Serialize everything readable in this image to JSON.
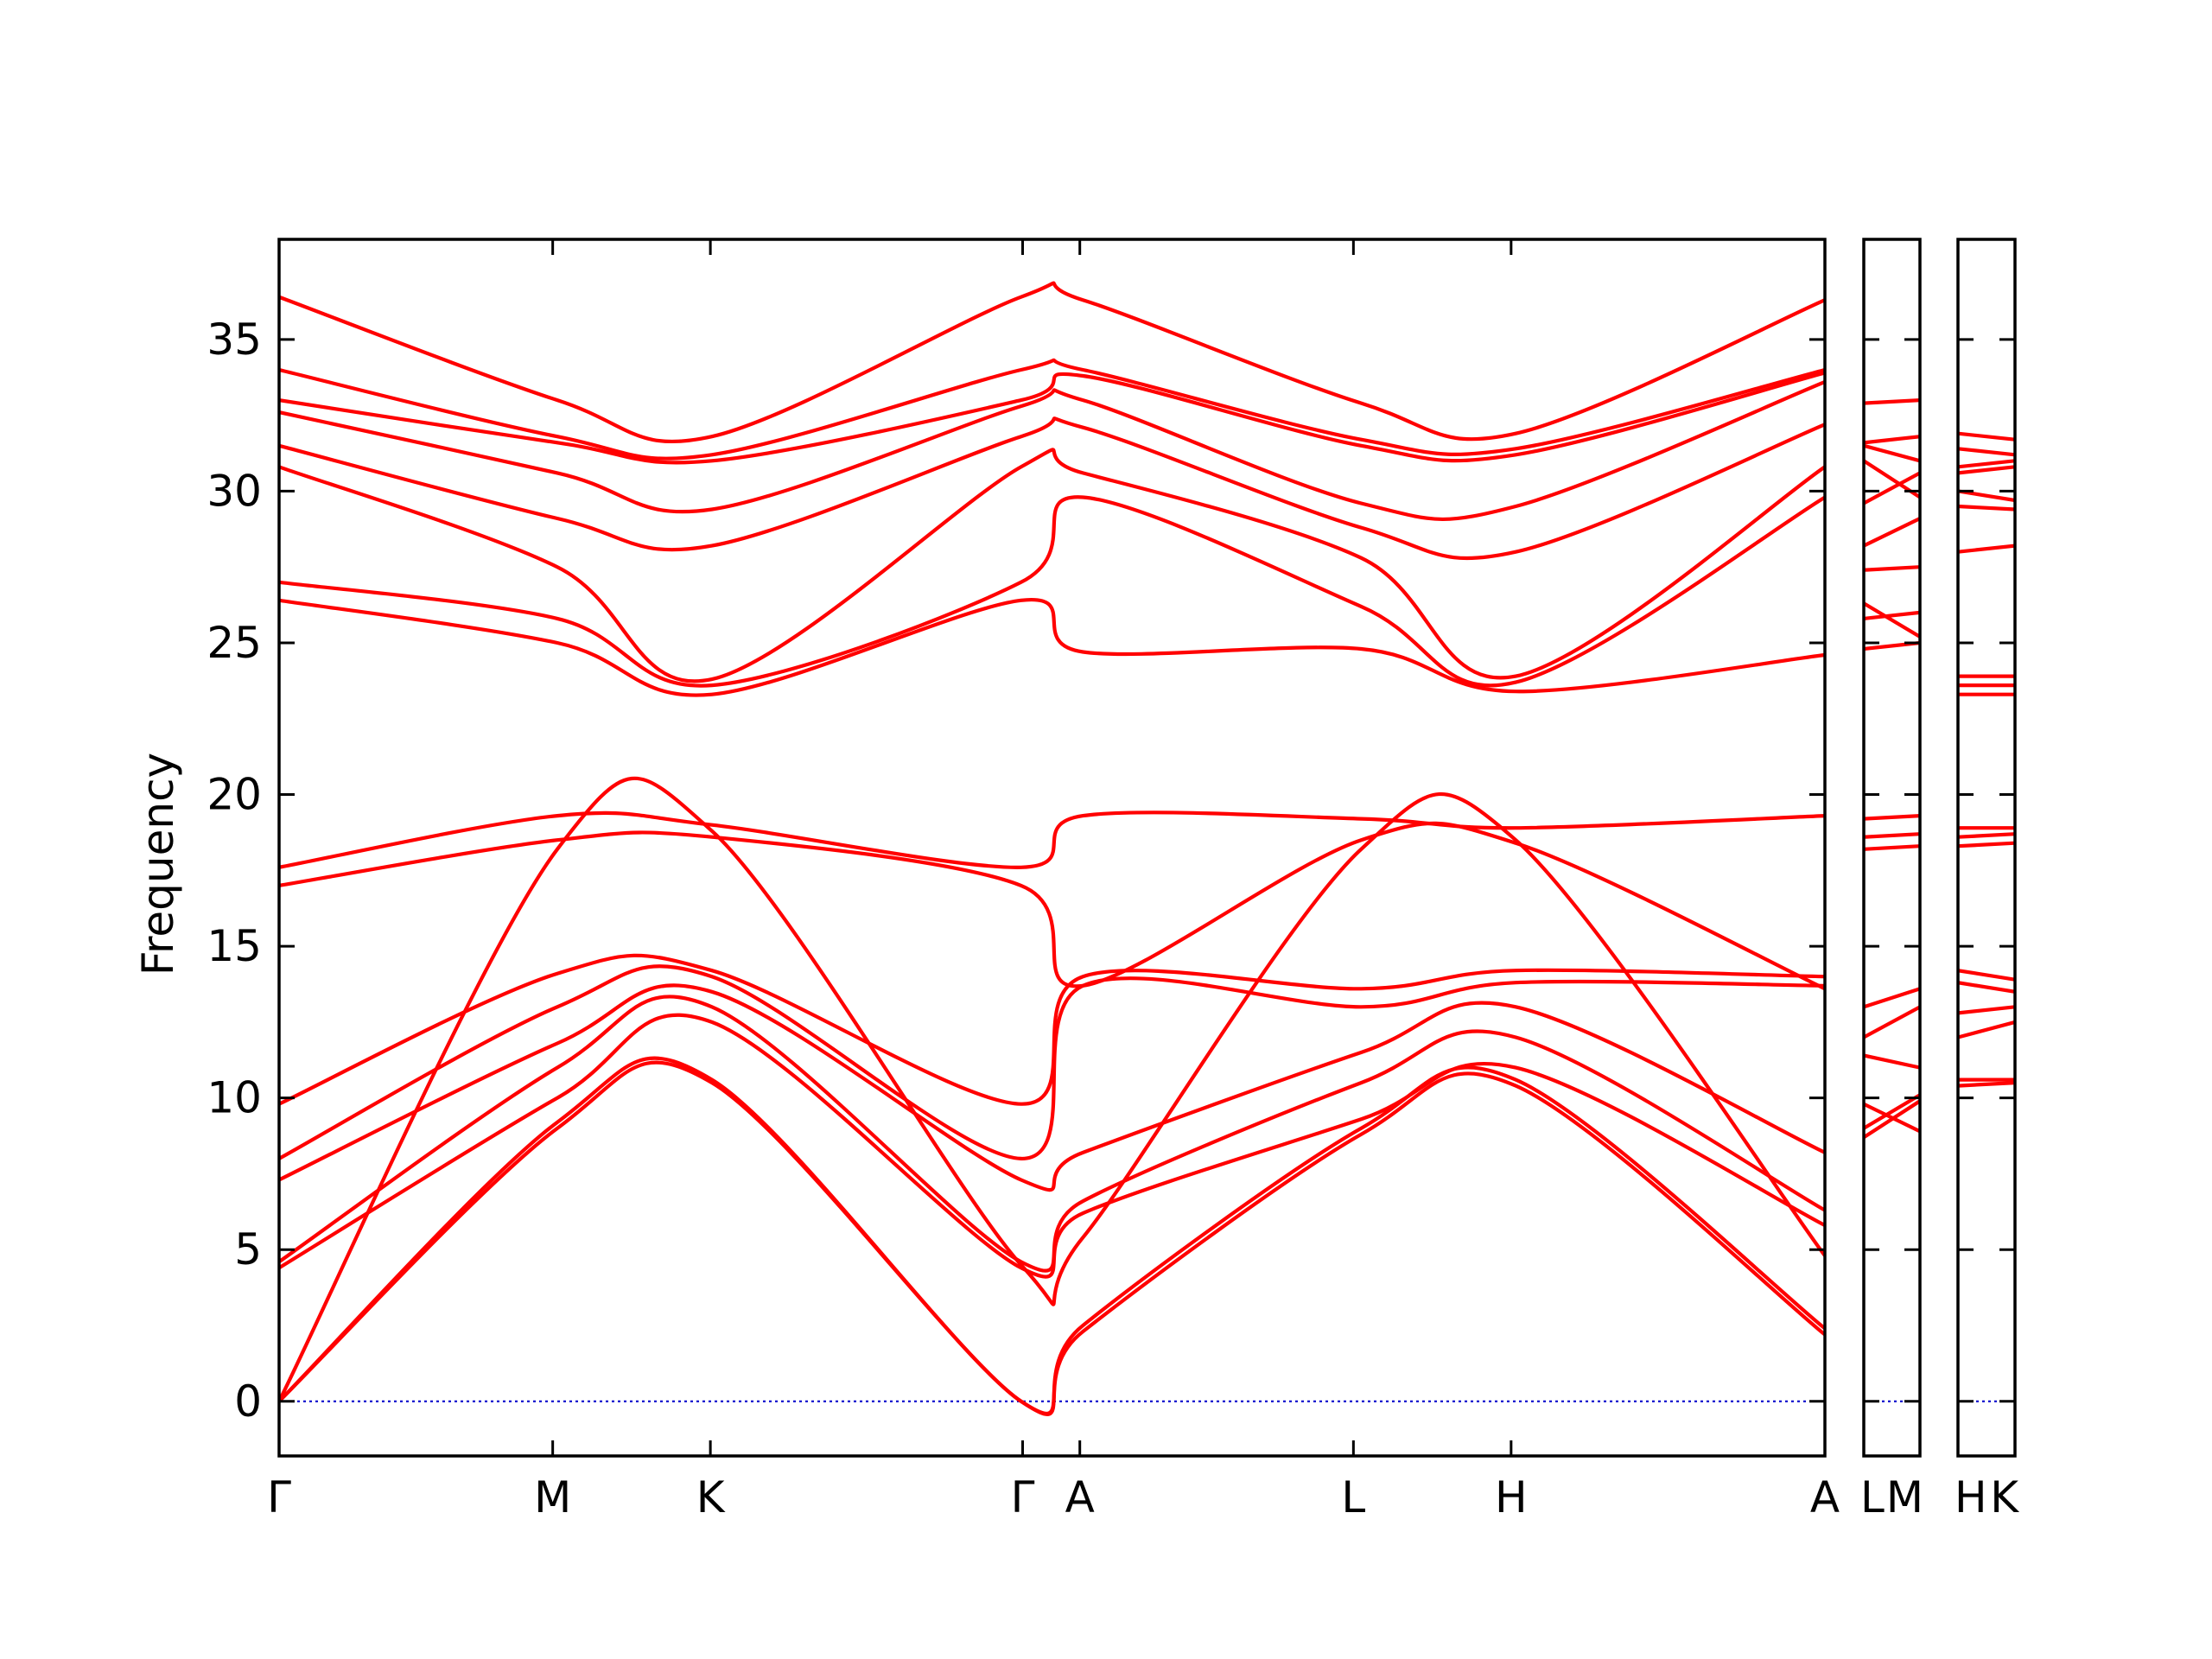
{
  "chart_data": {
    "type": "line",
    "title": "",
    "xlabel": "",
    "ylabel": "Frequency",
    "ylim": [
      -1.8,
      38.3
    ],
    "yticks": [
      0,
      5,
      10,
      15,
      20,
      25,
      30,
      35
    ],
    "ytick_labels": [
      "0",
      "5",
      "10",
      "15",
      "20",
      "25",
      "30",
      "35"
    ],
    "grid": false,
    "legend": "none",
    "colors": {
      "band": "#ff0000",
      "zero_line": "#0000cc",
      "axes": "#000000"
    },
    "panels": [
      {
        "id": "main",
        "path": [
          "Γ",
          "M",
          "K",
          "Γ",
          "A",
          "L",
          "H",
          "A"
        ],
        "x_range": [
          0,
          1
        ],
        "tick_positions": [
          0.0,
          0.177,
          0.279,
          0.481,
          0.518,
          0.695,
          0.797,
          1.0
        ],
        "tick_labels": [
          "Γ",
          "M",
          "K",
          "Γ",
          "A",
          "L",
          "H",
          "A"
        ],
        "series": [
          {
            "x": [
              0,
              0.18,
              0.28,
              0.48,
              0.52,
              0.7,
              0.8,
              1.0
            ],
            "y": [
              0.0,
              9.0,
              10.5,
              0.0,
              2.3,
              8.8,
              10.4,
              2.2
            ]
          },
          {
            "x": [
              0,
              0.18,
              0.28,
              0.48,
              0.52,
              0.7,
              0.8,
              1.0
            ],
            "y": [
              0.0,
              9.2,
              10.6,
              0.0,
              2.5,
              9.0,
              10.6,
              2.4
            ]
          },
          {
            "x": [
              0,
              0.18,
              0.28,
              0.48,
              0.52,
              0.7,
              0.8,
              1.0
            ],
            "y": [
              0.0,
              18.2,
              18.8,
              4.5,
              5.4,
              18.2,
              18.5,
              4.8
            ]
          },
          {
            "x": [
              0,
              0.18,
              0.28,
              0.48,
              0.52,
              0.7,
              0.8,
              1.0
            ],
            "y": [
              4.4,
              10.0,
              12.5,
              4.4,
              6.2,
              9.3,
              11.0,
              5.8
            ]
          },
          {
            "x": [
              0,
              0.18,
              0.28,
              0.48,
              0.52,
              0.7,
              0.8,
              1.0
            ],
            "y": [
              4.6,
              11.0,
              13.0,
              4.6,
              6.6,
              10.5,
              12.0,
              6.3
            ]
          },
          {
            "x": [
              0,
              0.18,
              0.28,
              0.48,
              0.52,
              0.7,
              0.8,
              1.0
            ],
            "y": [
              7.3,
              11.8,
              13.5,
              7.3,
              8.2,
              11.5,
              13.0,
              8.2
            ]
          },
          {
            "x": [
              0,
              0.18,
              0.28,
              0.48,
              0.52,
              0.7,
              0.8,
              1.0
            ],
            "y": [
              8.0,
              13.0,
              14.0,
              8.0,
              13.7,
              13.0,
              13.8,
              13.7
            ]
          },
          {
            "x": [
              0,
              0.18,
              0.28,
              0.48,
              0.52,
              0.7,
              0.8,
              1.0
            ],
            "y": [
              9.8,
              14.1,
              14.2,
              9.8,
              14.0,
              13.6,
              14.2,
              14.0
            ]
          },
          {
            "x": [
              0,
              0.18,
              0.28,
              0.48,
              0.52,
              0.7,
              0.8,
              1.0
            ],
            "y": [
              17.0,
              18.5,
              18.6,
              17.0,
              13.7,
              18.5,
              18.4,
              13.6
            ]
          },
          {
            "x": [
              0,
              0.18,
              0.28,
              0.48,
              0.52,
              0.7,
              0.8,
              1.0
            ],
            "y": [
              17.6,
              19.3,
              19.0,
              17.6,
              19.3,
              19.2,
              18.9,
              19.3
            ]
          },
          {
            "x": [
              0,
              0.18,
              0.28,
              0.48,
              0.52,
              0.7,
              0.8,
              1.0
            ],
            "y": [
              26.4,
              25.0,
              23.3,
              26.4,
              24.7,
              24.8,
              23.4,
              24.6
            ]
          },
          {
            "x": [
              0,
              0.18,
              0.28,
              0.48,
              0.52,
              0.7,
              0.8,
              1.0
            ],
            "y": [
              27.0,
              25.8,
              23.6,
              27.0,
              29.8,
              26.2,
              23.7,
              29.8
            ]
          },
          {
            "x": [
              0,
              0.18,
              0.28,
              0.48,
              0.52,
              0.7,
              0.8,
              1.0
            ],
            "y": [
              30.8,
              27.5,
              23.8,
              30.8,
              30.6,
              27.8,
              23.9,
              30.8
            ]
          },
          {
            "x": [
              0,
              0.18,
              0.28,
              0.48,
              0.52,
              0.7,
              0.8,
              1.0
            ],
            "y": [
              31.5,
              29.1,
              28.2,
              31.8,
              32.1,
              28.8,
              28.0,
              32.2
            ]
          },
          {
            "x": [
              0,
              0.18,
              0.28,
              0.48,
              0.52,
              0.7,
              0.8,
              1.0
            ],
            "y": [
              32.6,
              30.6,
              29.4,
              32.8,
              33.0,
              29.6,
              29.5,
              33.6
            ]
          },
          {
            "x": [
              0,
              0.18,
              0.28,
              0.48,
              0.52,
              0.7,
              0.8,
              1.0
            ],
            "y": [
              33.0,
              31.6,
              31.0,
              33.0,
              33.8,
              31.5,
              31.2,
              33.9
            ]
          },
          {
            "x": [
              0,
              0.18,
              0.28,
              0.48,
              0.52,
              0.7,
              0.8,
              1.0
            ],
            "y": [
              34.0,
              31.8,
              31.2,
              34.0,
              34.0,
              31.7,
              31.4,
              34.0
            ]
          },
          {
            "x": [
              0,
              0.18,
              0.28,
              0.48,
              0.52,
              0.7,
              0.8,
              1.0
            ],
            "y": [
              36.4,
              33.0,
              31.8,
              36.4,
              36.3,
              32.9,
              31.9,
              36.3
            ]
          }
        ]
      },
      {
        "id": "LM",
        "path": [
          "L",
          "M"
        ],
        "x_range": [
          0,
          1
        ],
        "tick_positions": [
          0.0,
          1.0
        ],
        "tick_labels": [
          "L",
          "M"
        ],
        "series": [
          {
            "x": [
              0,
              1
            ],
            "y": [
              8.7,
              9.9
            ]
          },
          {
            "x": [
              0,
              1
            ],
            "y": [
              9.0,
              10.1
            ]
          },
          {
            "x": [
              0,
              1
            ],
            "y": [
              9.8,
              8.9
            ]
          },
          {
            "x": [
              0,
              1
            ],
            "y": [
              11.4,
              11.0
            ]
          },
          {
            "x": [
              0,
              1
            ],
            "y": [
              13.0,
              13.6
            ]
          },
          {
            "x": [
              0,
              1
            ],
            "y": [
              12.0,
              13.0
            ]
          },
          {
            "x": [
              0,
              1
            ],
            "y": [
              18.2,
              18.3
            ]
          },
          {
            "x": [
              0,
              1
            ],
            "y": [
              18.6,
              18.7
            ]
          },
          {
            "x": [
              0,
              1
            ],
            "y": [
              19.2,
              19.3
            ]
          },
          {
            "x": [
              0,
              1
            ],
            "y": [
              24.8,
              25.0
            ]
          },
          {
            "x": [
              0,
              1
            ],
            "y": [
              25.8,
              26.0
            ]
          },
          {
            "x": [
              0,
              1
            ],
            "y": [
              26.3,
              25.2
            ]
          },
          {
            "x": [
              0,
              1
            ],
            "y": [
              27.4,
              27.5
            ]
          },
          {
            "x": [
              0,
              1
            ],
            "y": [
              28.2,
              29.1
            ]
          },
          {
            "x": [
              0,
              1
            ],
            "y": [
              29.6,
              30.6
            ]
          },
          {
            "x": [
              0,
              1
            ],
            "y": [
              31.0,
              29.8
            ]
          },
          {
            "x": [
              0,
              1
            ],
            "y": [
              31.5,
              31.0
            ]
          },
          {
            "x": [
              0,
              1
            ],
            "y": [
              31.6,
              31.8
            ]
          },
          {
            "x": [
              0,
              1
            ],
            "y": [
              32.9,
              33.0
            ]
          }
        ]
      },
      {
        "id": "HK",
        "path": [
          "H",
          "K"
        ],
        "x_range": [
          0,
          1
        ],
        "tick_positions": [
          0.0,
          1.0
        ],
        "tick_labels": [
          "H",
          "K"
        ],
        "series": [
          {
            "x": [
              0,
              1
            ],
            "y": [
              10.4,
              10.5
            ]
          },
          {
            "x": [
              0,
              1
            ],
            "y": [
              10.6,
              10.6
            ]
          },
          {
            "x": [
              0,
              1
            ],
            "y": [
              12.0,
              12.5
            ]
          },
          {
            "x": [
              0,
              1
            ],
            "y": [
              12.8,
              13.0
            ]
          },
          {
            "x": [
              0,
              1
            ],
            "y": [
              13.8,
              13.5
            ]
          },
          {
            "x": [
              0,
              1
            ],
            "y": [
              14.2,
              13.9
            ]
          },
          {
            "x": [
              0,
              1
            ],
            "y": [
              18.3,
              18.4
            ]
          },
          {
            "x": [
              0,
              1
            ],
            "y": [
              18.6,
              18.7
            ]
          },
          {
            "x": [
              0,
              1
            ],
            "y": [
              18.9,
              18.9
            ]
          },
          {
            "x": [
              0,
              1
            ],
            "y": [
              23.3,
              23.3
            ]
          },
          {
            "x": [
              0,
              1
            ],
            "y": [
              23.6,
              23.6
            ]
          },
          {
            "x": [
              0,
              1
            ],
            "y": [
              23.9,
              23.9
            ]
          },
          {
            "x": [
              0,
              1
            ],
            "y": [
              28.0,
              28.2
            ]
          },
          {
            "x": [
              0,
              1
            ],
            "y": [
              29.5,
              29.4
            ]
          },
          {
            "x": [
              0,
              1
            ],
            "y": [
              30.0,
              29.7
            ]
          },
          {
            "x": [
              0,
              1
            ],
            "y": [
              30.6,
              30.8
            ]
          },
          {
            "x": [
              0,
              1
            ],
            "y": [
              30.8,
              31.0
            ]
          },
          {
            "x": [
              0,
              1
            ],
            "y": [
              31.4,
              31.2
            ]
          },
          {
            "x": [
              0,
              1
            ],
            "y": [
              31.9,
              31.7
            ]
          }
        ]
      }
    ]
  }
}
